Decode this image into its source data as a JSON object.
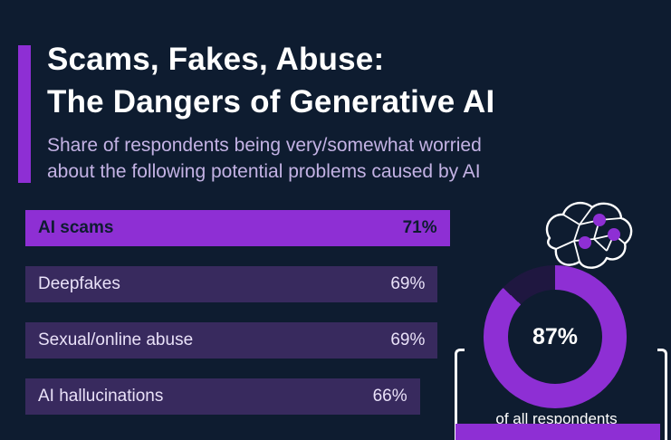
{
  "colors": {
    "background": "#0e1c30",
    "accent": "#8e2fd4",
    "bar_muted": "#382a5e",
    "donut_rest": "#1f1740",
    "title_text": "#ffffff",
    "subtitle_text": "#c3b2e4",
    "bar_text_light": "#e9e1f8",
    "bar_text_dark": "#0e1c30"
  },
  "header": {
    "title_line1": "Scams, Fakes, Abuse:",
    "title_line2": "The Dangers of Generative AI",
    "subtitle_line1": "Share of respondents being very/somewhat worried",
    "subtitle_line2": "about the following potential problems caused by AI"
  },
  "chart_data": [
    {
      "type": "bar",
      "orientation": "horizontal",
      "unit": "%",
      "categories": [
        "AI scams",
        "Deepfakes",
        "Sexual/online abuse",
        "AI hallucinations"
      ],
      "values": [
        71,
        69,
        69,
        66
      ],
      "value_labels": [
        "71%",
        "69%",
        "69%",
        "66%"
      ],
      "highlight_index": 0,
      "xlim": [
        0,
        100
      ],
      "grid": false,
      "legend": false
    },
    {
      "type": "pie",
      "style": "donut",
      "values": [
        87,
        13
      ],
      "center_label": "87%",
      "caption": "of all respondents",
      "start_angle_deg": 0
    }
  ]
}
